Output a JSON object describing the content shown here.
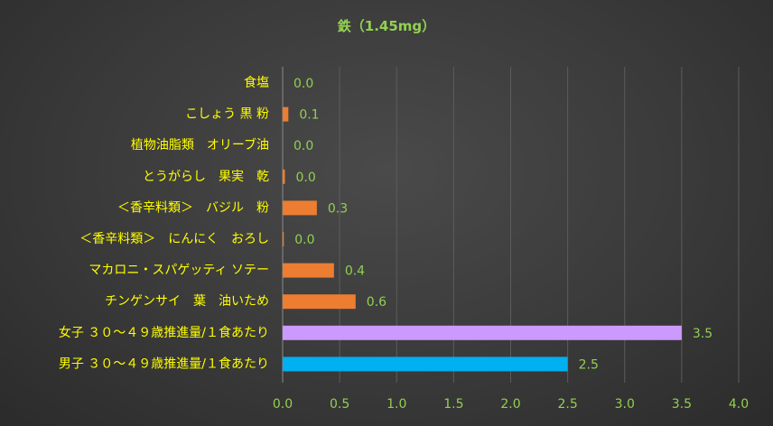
{
  "chart_data": {
    "type": "bar",
    "orientation": "horizontal",
    "title": "鉄（1.45mg）",
    "categories": [
      "食塩",
      "こしょう 黒 粉",
      "植物油脂類　オリーブ油",
      "とうがらし　果実　乾",
      "＜香辛料類＞　バジル　粉",
      "＜香辛料類＞　にんにく　おろし",
      "マカロニ・スパゲッティ ソテー",
      "チンゲンサイ　葉　油いため",
      "女子 ３０～４９歳推進量/１食あたり",
      "男子 ３０～４９歳推進量/１食あたり"
    ],
    "values": [
      0.0,
      0.05,
      0.0,
      0.02,
      0.3,
      0.01,
      0.45,
      0.64,
      3.5,
      2.5
    ],
    "data_labels": [
      "0.0",
      "0.1",
      "0.0",
      "0.0",
      "0.3",
      "0.0",
      "0.4",
      "0.6",
      "3.5",
      "2.5"
    ],
    "bar_colors": [
      "#ed7d31",
      "#ed7d31",
      "#ed7d31",
      "#ed7d31",
      "#ed7d31",
      "#ed7d31",
      "#ed7d31",
      "#ed7d31",
      "#cc99ff",
      "#00b0f0"
    ],
    "x_ticks": [
      "0.0",
      "0.5",
      "1.0",
      "1.5",
      "2.0",
      "2.5",
      "3.0",
      "3.5",
      "4.0"
    ],
    "xlim": [
      0,
      4.0
    ],
    "xlabel": "",
    "ylabel": "",
    "grid": true,
    "legend": false
  }
}
